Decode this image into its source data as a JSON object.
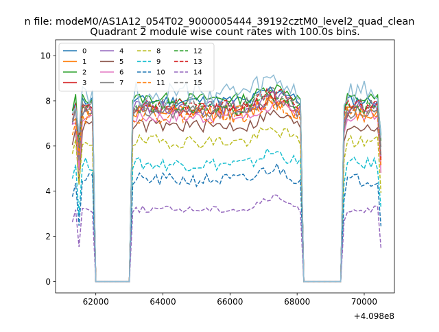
{
  "figure": {
    "suptitle": "n file: modeM0/AS1A12_054T02_9000005444_39192cztM0_level2_quad_clean",
    "title": "Quadrant 2 module wise count rates with 100.0s bins.",
    "offset_label": "+4.098e8"
  },
  "chart_data": {
    "type": "line",
    "title": "Quadrant 2 module wise count rates with 100.0s bins.",
    "xlabel": "",
    "ylabel": "",
    "x_offset": 409800000,
    "xlim": [
      60800,
      70900
    ],
    "ylim": [
      -0.5,
      10.7
    ],
    "xticks": [
      62000,
      64000,
      66000,
      68000,
      70000
    ],
    "yticks": [
      0,
      2,
      4,
      6,
      8,
      10
    ],
    "grid": false,
    "legend": {
      "loc": "top-left",
      "ncol": 4
    },
    "segments": [
      [
        61300,
        61900
      ],
      [
        63100,
        68100
      ],
      [
        69400,
        70500
      ]
    ],
    "gap_value": 0,
    "series": [
      {
        "name": "0",
        "color": "#1f77b4",
        "dash": "solid",
        "level": 8.0,
        "noise": 0.25,
        "seed": 11
      },
      {
        "name": "1",
        "color": "#ff7f0e",
        "dash": "solid",
        "level": 7.5,
        "noise": 0.35,
        "seed": 12
      },
      {
        "name": "2",
        "color": "#2ca02c",
        "dash": "solid",
        "level": 8.1,
        "noise": 0.25,
        "seed": 13
      },
      {
        "name": "3",
        "color": "#d62728",
        "dash": "solid",
        "level": 7.6,
        "noise": 0.3,
        "seed": 14
      },
      {
        "name": "4",
        "color": "#9467bd",
        "dash": "solid",
        "level": 7.7,
        "noise": 0.3,
        "seed": 15
      },
      {
        "name": "5",
        "color": "#8c564b",
        "dash": "solid",
        "level": 6.9,
        "noise": 0.3,
        "seed": 16
      },
      {
        "name": "6",
        "color": "#e377c2",
        "dash": "solid",
        "level": 7.3,
        "noise": 0.3,
        "seed": 17
      },
      {
        "name": "7",
        "color": "#7f7f7f",
        "dash": "solid",
        "level": 7.5,
        "noise": 0.3,
        "seed": 18
      },
      {
        "name": "8",
        "color": "#bcbd22",
        "dash": "dashed",
        "level": 6.2,
        "noise": 0.3,
        "seed": 19
      },
      {
        "name": "9",
        "color": "#17becf",
        "dash": "dashed",
        "level": 5.2,
        "noise": 0.3,
        "seed": 20
      },
      {
        "name": "10",
        "color": "#1f77b4",
        "dash": "dashed",
        "level": 4.5,
        "noise": 0.3,
        "seed": 21
      },
      {
        "name": "11",
        "color": "#ff7f0e",
        "dash": "dashed",
        "level": 7.4,
        "noise": 0.4,
        "seed": 22
      },
      {
        "name": "12",
        "color": "#2ca02c",
        "dash": "dashed",
        "level": 7.7,
        "noise": 0.3,
        "seed": 23
      },
      {
        "name": "13",
        "color": "#d62728",
        "dash": "dashed",
        "level": 7.8,
        "noise": 0.3,
        "seed": 24
      },
      {
        "name": "14",
        "color": "#9467bd",
        "dash": "dashed",
        "level": 3.2,
        "noise": 0.15,
        "seed": 25
      },
      {
        "name": "15",
        "color": "#7f7f7f",
        "dash": "dashed",
        "level": 7.8,
        "noise": 0.35,
        "seed": 26
      },
      {
        "name": "",
        "color": "#8fbcd4",
        "dash": "solid",
        "level": 8.3,
        "noise": 0.6,
        "seed": 27
      }
    ]
  }
}
